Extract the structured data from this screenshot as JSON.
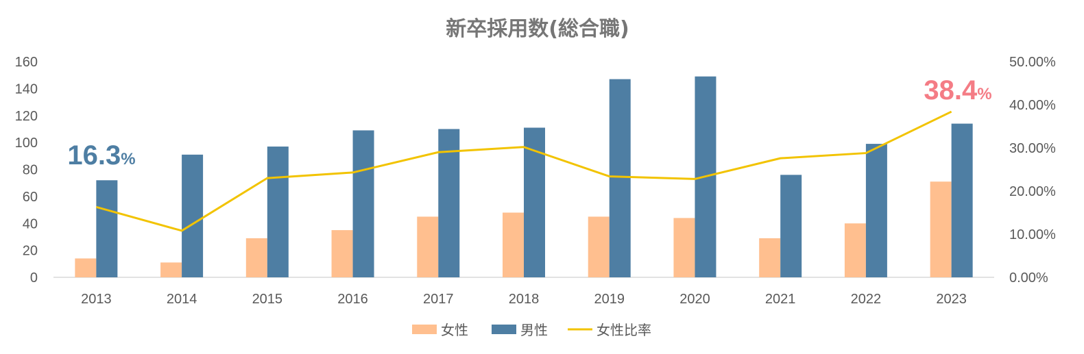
{
  "chart_data": {
    "type": "bar",
    "title": "新卒採用数(総合職)",
    "categories": [
      "2013",
      "2014",
      "2015",
      "2016",
      "2017",
      "2018",
      "2019",
      "2020",
      "2021",
      "2022",
      "2023"
    ],
    "series": [
      {
        "name": "女性",
        "kind": "bar",
        "axis": "left",
        "color": "#FFBF8F",
        "values": [
          14,
          11,
          29,
          35,
          45,
          48,
          45,
          44,
          29,
          40,
          71
        ]
      },
      {
        "name": "男性",
        "kind": "bar",
        "axis": "left",
        "color": "#4E7EA3",
        "values": [
          72,
          91,
          97,
          109,
          110,
          111,
          147,
          149,
          76,
          99,
          114
        ]
      },
      {
        "name": "女性比率",
        "kind": "line",
        "axis": "right",
        "color": "#F2C300",
        "values": [
          16.3,
          10.8,
          23.0,
          24.3,
          29.0,
          30.2,
          23.4,
          22.8,
          27.6,
          28.8,
          38.4
        ]
      }
    ],
    "y_left": {
      "min": 0,
      "max": 160,
      "step": 20,
      "ticks": [
        "0",
        "20",
        "40",
        "60",
        "80",
        "100",
        "120",
        "140",
        "160"
      ]
    },
    "y_right": {
      "min": 0,
      "max": 50,
      "step": 10,
      "ticks": [
        "0.00%",
        "10.00%",
        "20.00%",
        "30.00%",
        "40.00%",
        "50.00%"
      ]
    },
    "legend_position": "bottom-center",
    "annotations": [
      {
        "category": "2013",
        "value": "16.3",
        "unit": "%",
        "color": "#4E7EA3"
      },
      {
        "category": "2023",
        "value": "38.4",
        "unit": "%",
        "color": "#F47C85"
      }
    ]
  }
}
